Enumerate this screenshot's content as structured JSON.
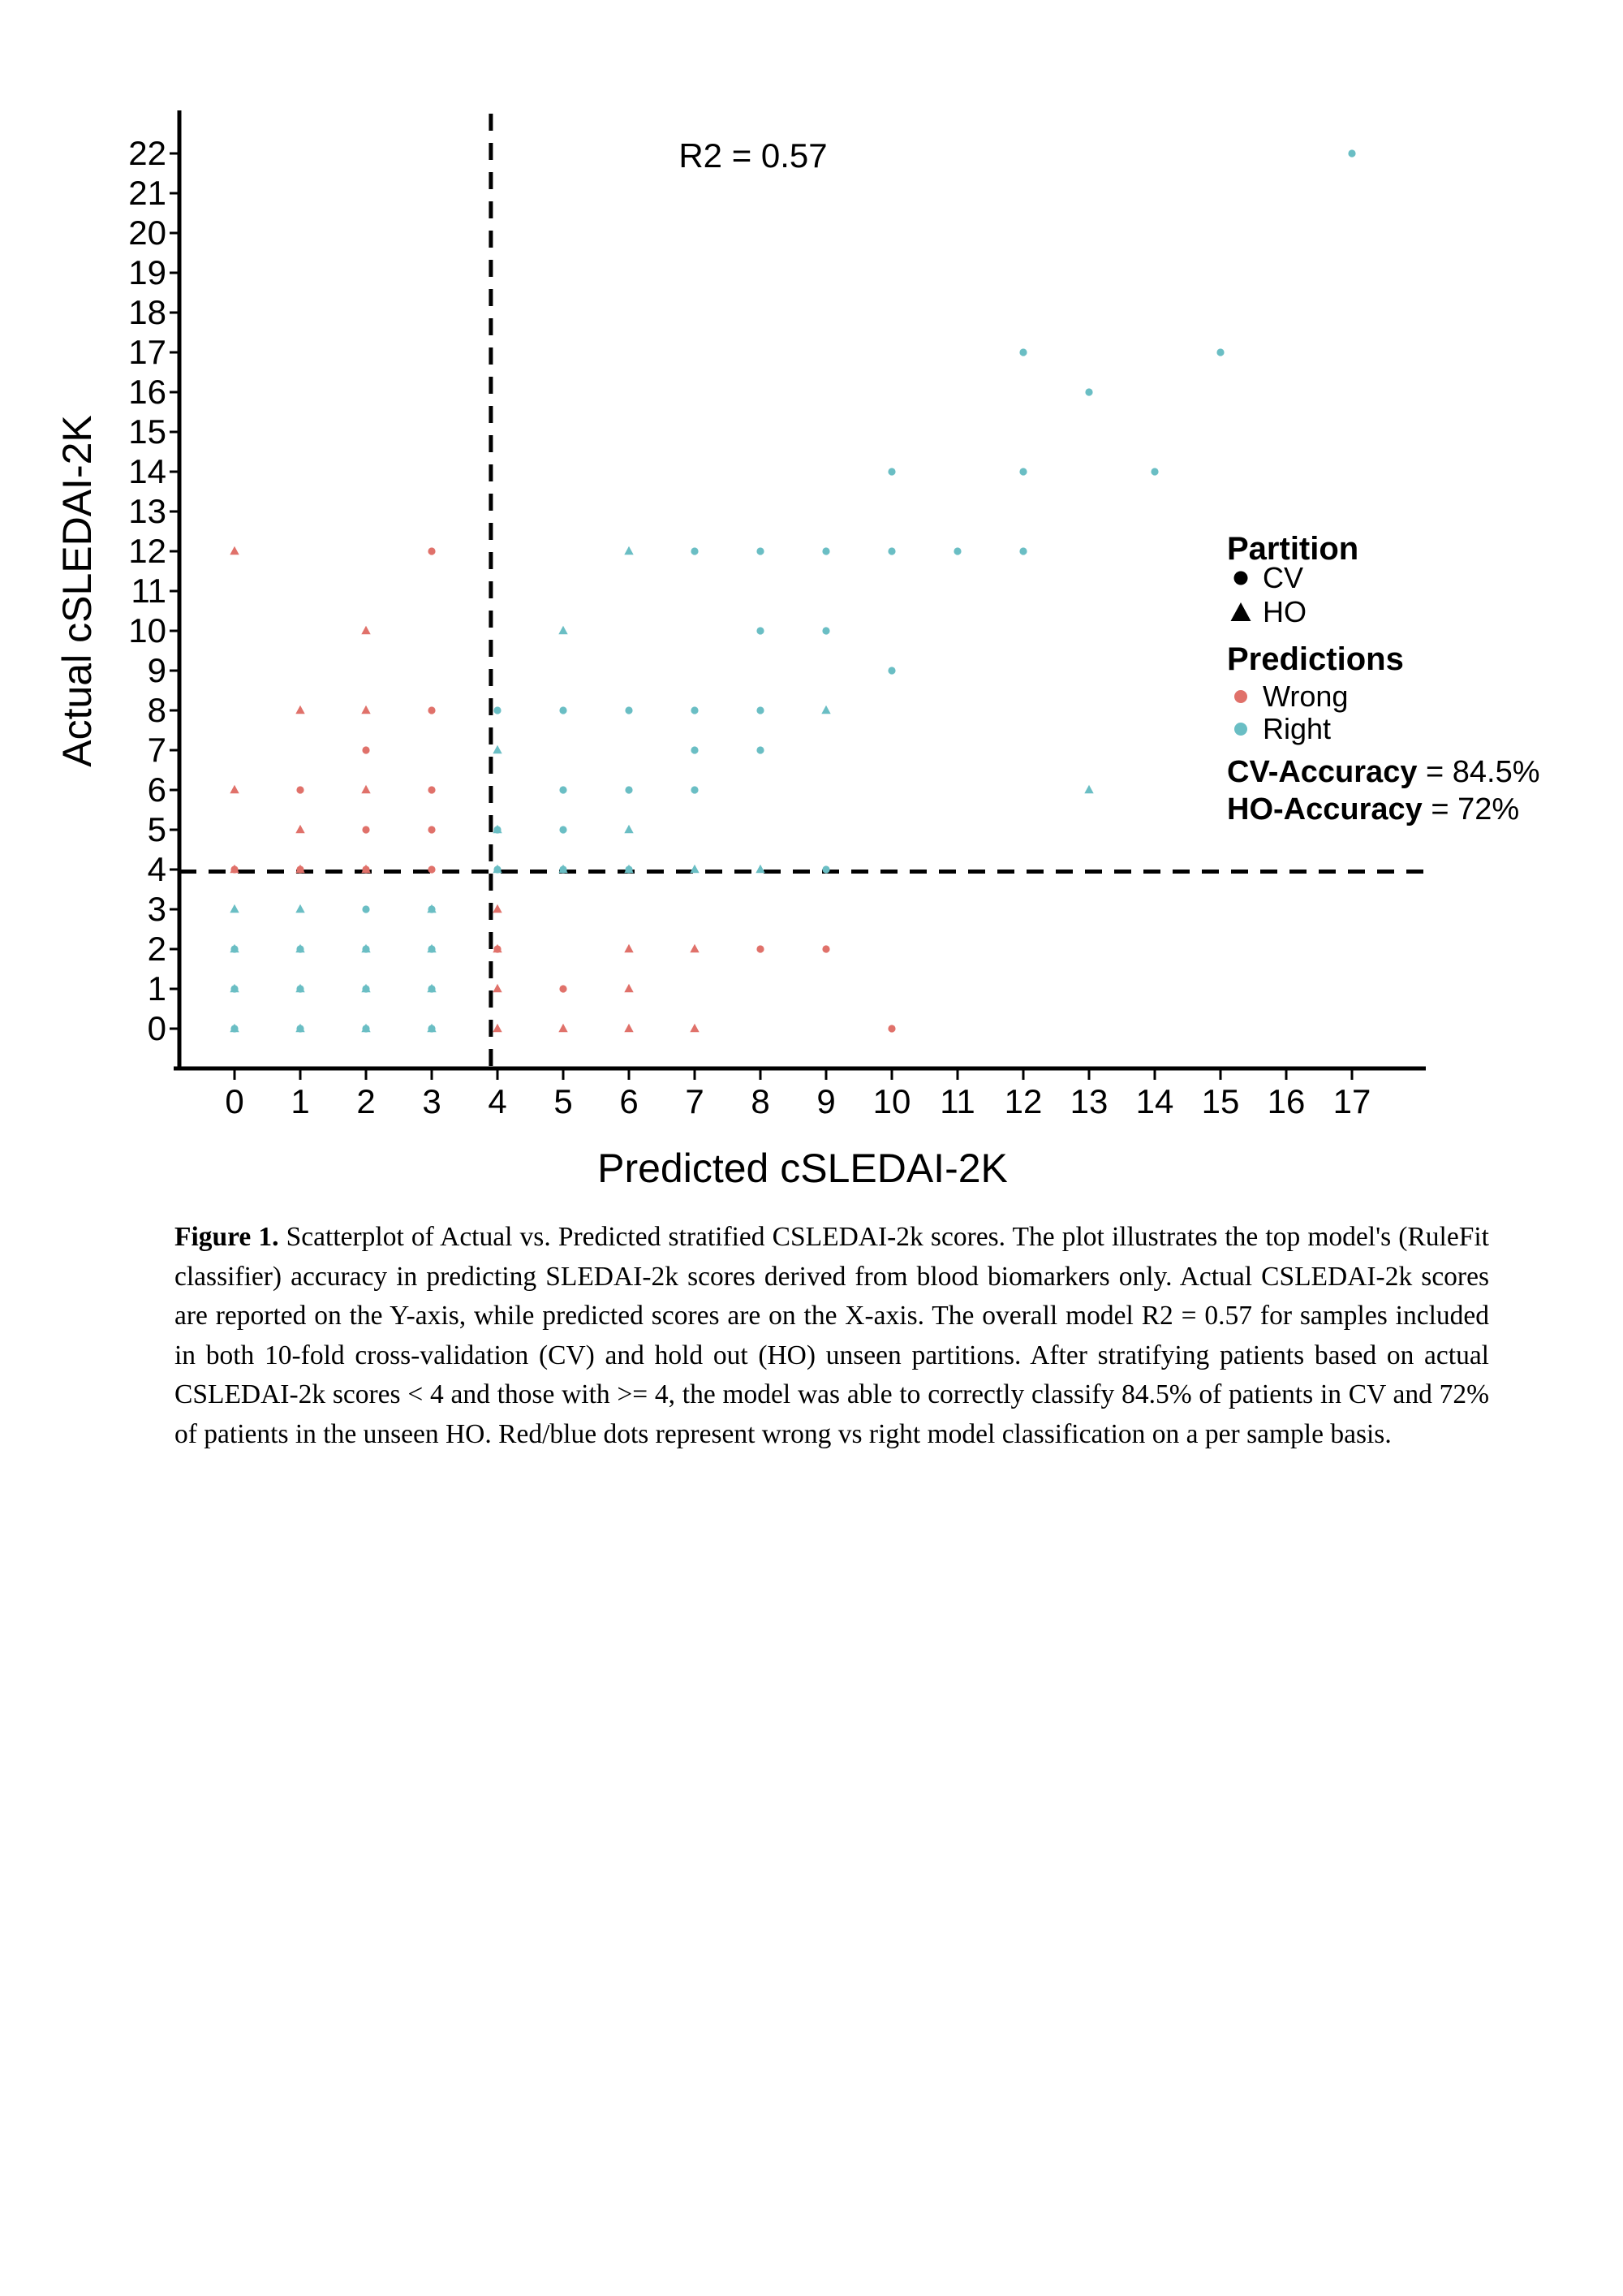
{
  "chart_data": {
    "type": "scatter",
    "annotation": "R2 = 0.57",
    "xlabel": "Predicted cSLEDAI-2K",
    "ylabel": "Actual cSLEDAI-2K",
    "x_ticks": [
      0,
      1,
      2,
      3,
      4,
      5,
      6,
      7,
      8,
      9,
      10,
      11,
      12,
      13,
      14,
      15,
      16,
      17
    ],
    "y_ticks": [
      0,
      1,
      2,
      3,
      4,
      5,
      6,
      7,
      8,
      9,
      10,
      11,
      12,
      13,
      14,
      15,
      16,
      17,
      18,
      19,
      20,
      21,
      22
    ],
    "xlim": [
      -0.8,
      18.0
    ],
    "ylim": [
      -1.0,
      23.0
    ],
    "grid": false,
    "legend_position": "right",
    "threshold_lines": {
      "vertical_x": 3.9,
      "horizontal_y": 3.95,
      "style": "dashed",
      "color": "#000000"
    },
    "colors": {
      "wrong": "#E0716A",
      "right": "#6ABEC4",
      "axis": "#000000"
    },
    "series": [
      {
        "name": "CV Right",
        "partition": "CV",
        "prediction": "Right",
        "marker": "circle",
        "color": "#6ABEC4",
        "points": [
          [
            0,
            0
          ],
          [
            1,
            0
          ],
          [
            2,
            0
          ],
          [
            3,
            0
          ],
          [
            0,
            1
          ],
          [
            1,
            1
          ],
          [
            2,
            1
          ],
          [
            3,
            1
          ],
          [
            0,
            2
          ],
          [
            1,
            2
          ],
          [
            2,
            2
          ],
          [
            3,
            2
          ],
          [
            2,
            3
          ],
          [
            3,
            3
          ],
          [
            4,
            4
          ],
          [
            5,
            4
          ],
          [
            6,
            4
          ],
          [
            9,
            4
          ],
          [
            4,
            5
          ],
          [
            5,
            5
          ],
          [
            5,
            6
          ],
          [
            6,
            6
          ],
          [
            7,
            6
          ],
          [
            7,
            7
          ],
          [
            8,
            7
          ],
          [
            4,
            8
          ],
          [
            5,
            8
          ],
          [
            6,
            8
          ],
          [
            7,
            8
          ],
          [
            8,
            8
          ],
          [
            10,
            9
          ],
          [
            8,
            10
          ],
          [
            9,
            10
          ],
          [
            7,
            12
          ],
          [
            8,
            12
          ],
          [
            9,
            12
          ],
          [
            10,
            12
          ],
          [
            11,
            12
          ],
          [
            12,
            12
          ],
          [
            10,
            14
          ],
          [
            12,
            14
          ],
          [
            14,
            14
          ],
          [
            13,
            16
          ],
          [
            12,
            17
          ],
          [
            15,
            17
          ],
          [
            17,
            22
          ]
        ]
      },
      {
        "name": "CV Wrong",
        "partition": "CV",
        "prediction": "Wrong",
        "marker": "circle",
        "color": "#E0716A",
        "points": [
          [
            10,
            0
          ],
          [
            5,
            1
          ],
          [
            4,
            2
          ],
          [
            8,
            2
          ],
          [
            9,
            2
          ],
          [
            0,
            4
          ],
          [
            1,
            4
          ],
          [
            2,
            4
          ],
          [
            3,
            4
          ],
          [
            2,
            5
          ],
          [
            3,
            5
          ],
          [
            1,
            6
          ],
          [
            3,
            6
          ],
          [
            2,
            7
          ],
          [
            3,
            8
          ],
          [
            3,
            12
          ]
        ]
      },
      {
        "name": "HO Right",
        "partition": "HO",
        "prediction": "Right",
        "marker": "triangle",
        "color": "#6ABEC4",
        "points": [
          [
            0,
            0
          ],
          [
            1,
            0
          ],
          [
            2,
            0
          ],
          [
            3,
            0
          ],
          [
            0,
            1
          ],
          [
            1,
            1
          ],
          [
            2,
            1
          ],
          [
            3,
            1
          ],
          [
            0,
            2
          ],
          [
            1,
            2
          ],
          [
            2,
            2
          ],
          [
            3,
            2
          ],
          [
            0,
            3
          ],
          [
            1,
            3
          ],
          [
            3,
            3
          ],
          [
            4,
            4
          ],
          [
            5,
            4
          ],
          [
            6,
            4
          ],
          [
            7,
            4
          ],
          [
            8,
            4
          ],
          [
            4,
            5
          ],
          [
            6,
            5
          ],
          [
            13,
            6
          ],
          [
            4,
            7
          ],
          [
            9,
            8
          ],
          [
            5,
            10
          ],
          [
            6,
            12
          ]
        ]
      },
      {
        "name": "HO Wrong",
        "partition": "HO",
        "prediction": "Wrong",
        "marker": "triangle",
        "color": "#E0716A",
        "points": [
          [
            4,
            0
          ],
          [
            5,
            0
          ],
          [
            6,
            0
          ],
          [
            7,
            0
          ],
          [
            4,
            1
          ],
          [
            6,
            1
          ],
          [
            4,
            2
          ],
          [
            6,
            2
          ],
          [
            7,
            2
          ],
          [
            4,
            3
          ],
          [
            0,
            4
          ],
          [
            1,
            4
          ],
          [
            2,
            4
          ],
          [
            1,
            5
          ],
          [
            0,
            6
          ],
          [
            2,
            6
          ],
          [
            1,
            8
          ],
          [
            2,
            8
          ],
          [
            2,
            10
          ],
          [
            0,
            12
          ]
        ]
      }
    ],
    "legend": {
      "partition_title": "Partition",
      "partition_items": [
        {
          "label": "CV",
          "marker": "circle",
          "color": "#000000"
        },
        {
          "label": "HO",
          "marker": "triangle",
          "color": "#000000"
        }
      ],
      "predictions_title": "Predictions",
      "prediction_items": [
        {
          "label": "Wrong",
          "color": "#E0716A"
        },
        {
          "label": "Right",
          "color": "#6ABEC4"
        }
      ],
      "stats": [
        {
          "label": "CV-Accuracy",
          "value": " = 84.5%"
        },
        {
          "label": "HO-Accuracy",
          "value": " = 72%"
        }
      ]
    }
  },
  "caption": {
    "label": "Figure 1.",
    "text": " Scatterplot of Actual vs. Predicted stratified CSLEDAI-2k scores. The plot illustrates the top model's (RuleFit classifier) accuracy in predicting SLEDAI-2k scores derived from blood biomarkers only. Actual CSLEDAI-2k scores are reported on the Y-axis, while predicted scores are on the X-axis. The overall model R2 = 0.57 for samples included in both 10-fold cross-validation (CV) and hold out (HO) unseen partitions. After stratifying patients based on actual CSLEDAI-2k scores < 4 and those with >= 4, the model was able to correctly classify 84.5% of patients in CV and 72% of patients in the unseen HO. Red/blue dots represent wrong vs right model classification on a per sample basis."
  }
}
